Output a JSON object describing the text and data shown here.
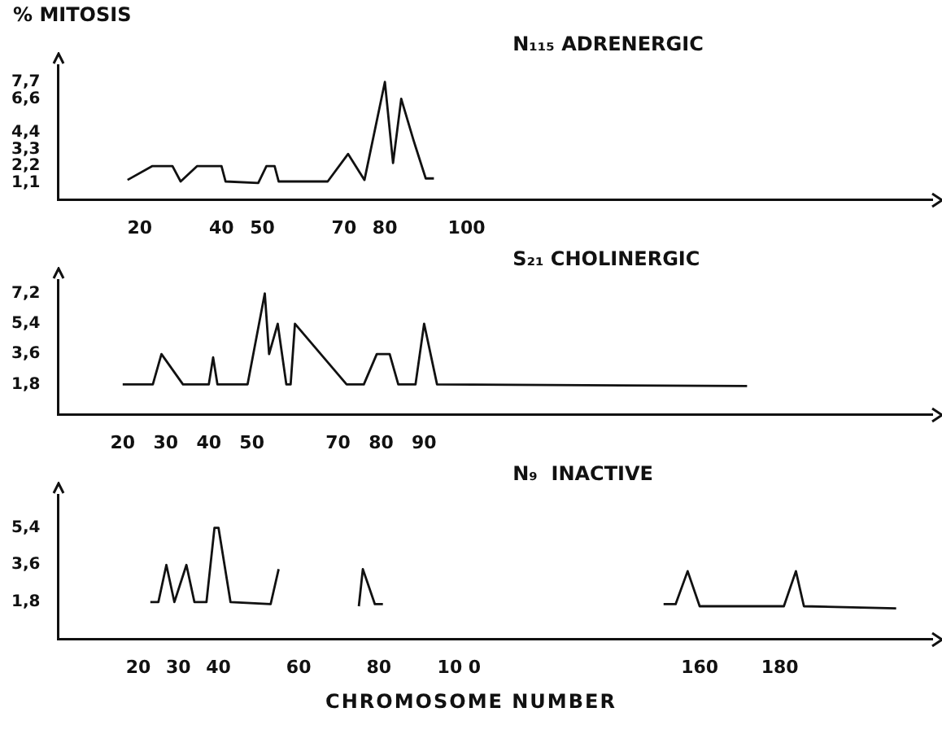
{
  "chart_data": [
    {
      "type": "line",
      "title": "N₁₁₅ ADRENERGIC",
      "ylabel": "% MITOSIS",
      "color": "#111111",
      "legend": false,
      "grid": false,
      "marker": "none",
      "x": [
        17,
        23,
        28,
        30,
        34,
        40,
        41,
        49,
        51,
        53,
        54,
        66,
        71,
        75,
        80,
        82,
        84,
        87,
        90,
        92
      ],
      "values": [
        1.3,
        2.2,
        2.2,
        1.2,
        2.2,
        2.2,
        1.2,
        1.1,
        2.2,
        2.2,
        1.2,
        1.2,
        3.0,
        1.3,
        7.7,
        2.4,
        6.6,
        3.9,
        1.4,
        1.4
      ],
      "xlim": [
        0,
        214
      ],
      "xticks": [
        20,
        40,
        50,
        70,
        80,
        100
      ],
      "ylim": [
        0,
        8.8
      ],
      "yticks": [
        {
          "value": 1.1,
          "label": "1,1"
        },
        {
          "value": 2.2,
          "label": "2,2"
        },
        {
          "value": 3.3,
          "label": "3,3"
        },
        {
          "value": 4.4,
          "label": "4,4"
        },
        {
          "value": 6.6,
          "label": "6,6"
        },
        {
          "value": 7.7,
          "label": "7,7"
        }
      ]
    },
    {
      "type": "line",
      "title": "S₂₁ CHOLINERGIC",
      "color": "#111111",
      "legend": false,
      "grid": false,
      "marker": "none",
      "x": [
        20,
        27,
        29,
        34,
        40,
        41,
        42,
        49,
        53,
        54,
        56,
        58,
        59,
        60,
        72,
        76,
        79,
        82,
        84,
        88,
        90,
        93,
        165
      ],
      "values": [
        1.8,
        1.8,
        3.6,
        1.8,
        1.8,
        3.4,
        1.8,
        1.8,
        7.2,
        3.6,
        5.4,
        1.8,
        1.8,
        5.4,
        1.8,
        1.8,
        3.6,
        3.6,
        1.8,
        1.8,
        5.4,
        1.8,
        1.7
      ],
      "xlim": [
        5,
        208
      ],
      "xticks": [
        20,
        30,
        40,
        50,
        70,
        80,
        90
      ],
      "ylim": [
        0,
        8
      ],
      "yticks": [
        {
          "value": 1.8,
          "label": "1,8"
        },
        {
          "value": 3.6,
          "label": "3,6"
        },
        {
          "value": 5.4,
          "label": "5,4"
        },
        {
          "value": 7.2,
          "label": "7,2"
        }
      ]
    },
    {
      "type": "line",
      "title": "N₉  INACTIVE",
      "xlabel": "CHROMOSOME NUMBER",
      "color": "#111111",
      "legend": false,
      "grid": false,
      "marker": "none",
      "x": [
        23,
        25,
        27,
        29,
        32,
        34,
        37,
        39,
        40,
        43,
        53,
        55,
        65,
        75,
        76,
        79,
        81,
        120,
        151,
        154,
        157,
        160,
        181,
        184,
        186,
        209
      ],
      "values": [
        1.8,
        1.8,
        3.6,
        1.8,
        3.6,
        1.8,
        1.8,
        5.4,
        5.4,
        1.8,
        1.7,
        3.4,
        null,
        1.6,
        3.4,
        1.7,
        1.7,
        null,
        1.7,
        1.7,
        3.3,
        1.6,
        1.6,
        3.3,
        1.6,
        1.5
      ],
      "xlim": [
        0,
        218
      ],
      "xticks": [
        20,
        30,
        40,
        60,
        80,
        {
          "value": 100,
          "label": "10 0"
        },
        160,
        180
      ],
      "ylim": [
        0,
        7
      ],
      "yticks": [
        {
          "value": 1.8,
          "label": "1,8"
        },
        {
          "value": 3.6,
          "label": "3,6"
        },
        {
          "value": 5.4,
          "label": "5,4"
        }
      ]
    }
  ]
}
